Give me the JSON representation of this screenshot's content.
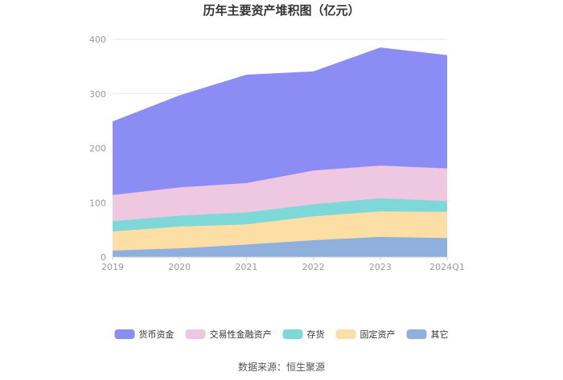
{
  "chart_data": {
    "type": "area",
    "stacked": true,
    "title": "历年主要资产堆积图（亿元）",
    "categories": [
      "2019",
      "2020",
      "2021",
      "2022",
      "2023",
      "2024Q1"
    ],
    "ylim": [
      0,
      400
    ],
    "yticks": [
      0,
      100,
      200,
      300,
      400
    ],
    "grid": true,
    "legend_position": "bottom",
    "series": [
      {
        "name": "其它",
        "color": "#8fb0dc",
        "values": [
          12,
          16,
          23,
          31,
          37,
          35
        ]
      },
      {
        "name": "固定资产",
        "color": "#fddfa5",
        "values": [
          35,
          40,
          37,
          44,
          47,
          48
        ]
      },
      {
        "name": "存货",
        "color": "#7fd8d8",
        "values": [
          19,
          20,
          22,
          22,
          24,
          20
        ]
      },
      {
        "name": "交易性金融资产",
        "color": "#eec7e0",
        "values": [
          48,
          52,
          54,
          62,
          60,
          60
        ]
      },
      {
        "name": "货币资金",
        "color": "#8b8cf4",
        "values": [
          134,
          168,
          198,
          181,
          216,
          207
        ]
      }
    ],
    "legend_order": [
      "货币资金",
      "交易性金融资产",
      "存货",
      "固定资产",
      "其它"
    ]
  },
  "source_text": "数据来源：恒生聚源"
}
